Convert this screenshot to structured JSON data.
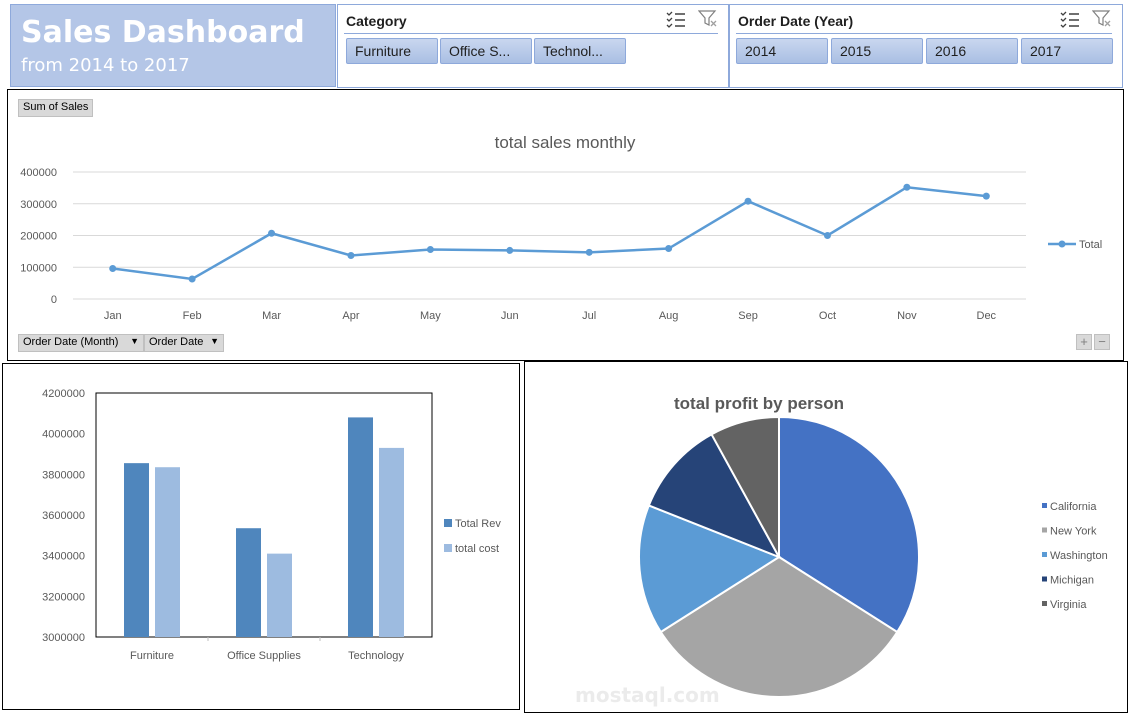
{
  "dashboard": {
    "title": "Sales Dashboard",
    "subtitle": "from 2014 to 2017"
  },
  "slicers": {
    "category": {
      "header": "Category",
      "items": [
        "Furniture",
        "Office S...",
        "Technol..."
      ]
    },
    "year": {
      "header": "Order Date (Year)",
      "items": [
        "2014",
        "2015",
        "2016",
        "2017"
      ]
    }
  },
  "line_panel": {
    "value_field": "Sum of Sales",
    "axis_fields": [
      "Order Date (Month)",
      "Order Date"
    ]
  },
  "colors": {
    "line": "#5b9bd5",
    "bar_rev": "#4f86bd",
    "bar_cost": "#9dbbe0",
    "pie": [
      "#4472c4",
      "#a5a5a5",
      "#5b9bd5",
      "#264478",
      "#636363"
    ]
  },
  "chart_data": [
    {
      "id": "line",
      "type": "line",
      "title": "total sales monthly",
      "categories": [
        "Jan",
        "Feb",
        "Mar",
        "Apr",
        "May",
        "Jun",
        "Jul",
        "Aug",
        "Sep",
        "Oct",
        "Nov",
        "Dec"
      ],
      "series": [
        {
          "name": "Total",
          "values": [
            96000,
            63000,
            207000,
            137000,
            156000,
            153000,
            147000,
            159000,
            308000,
            200000,
            352000,
            324000
          ]
        }
      ],
      "ylim": [
        0,
        400000
      ],
      "yticks": [
        0,
        100000,
        200000,
        300000,
        400000
      ],
      "grid": true,
      "legend_position": "right"
    },
    {
      "id": "bar",
      "type": "bar",
      "title": "",
      "categories": [
        "Furniture",
        "Office Supplies",
        "Technology"
      ],
      "series": [
        {
          "name": "Total Rev",
          "values": [
            3855000,
            3535000,
            4080000
          ]
        },
        {
          "name": "total cost",
          "values": [
            3835000,
            3410000,
            3930000
          ]
        }
      ],
      "ylim": [
        3000000,
        4200000
      ],
      "yticks": [
        3000000,
        3200000,
        3400000,
        3600000,
        3800000,
        4000000,
        4200000
      ],
      "grid": false,
      "legend_position": "right"
    },
    {
      "id": "pie",
      "type": "pie",
      "title": "total profit by person",
      "labels": [
        "California",
        "New York",
        "Washington",
        "Michigan",
        "Virginia"
      ],
      "values": [
        34,
        32,
        15,
        11,
        8
      ],
      "legend_position": "right"
    }
  ]
}
